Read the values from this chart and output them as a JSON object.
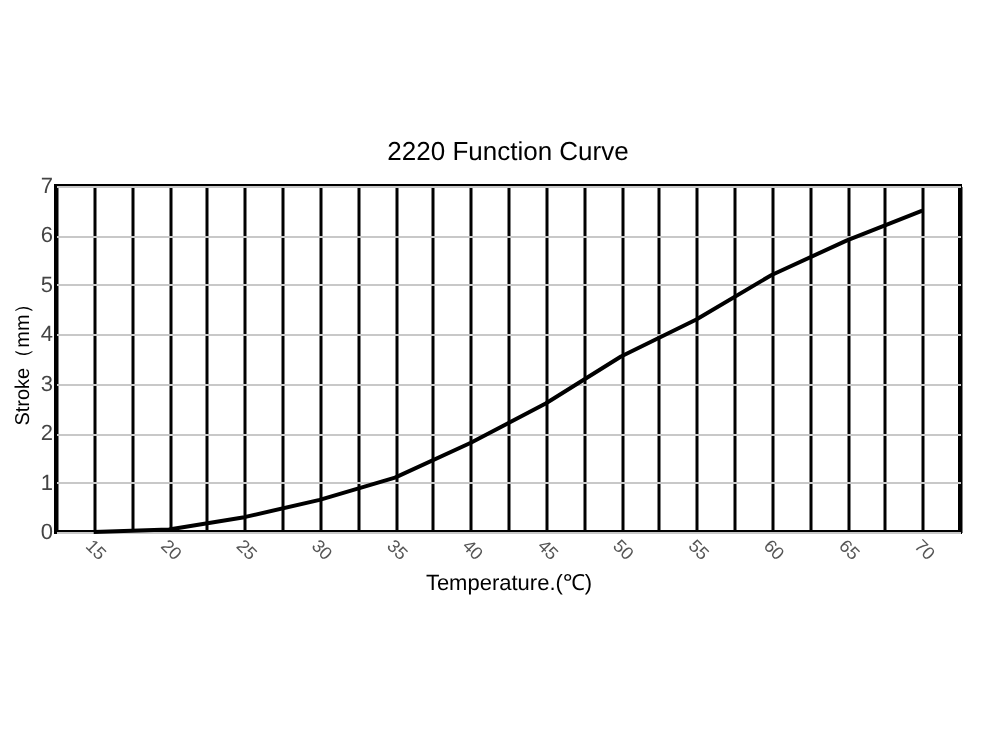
{
  "chart_data": {
    "type": "line",
    "title": "2220 Function Curve",
    "xlabel": "Temperature.(℃)",
    "ylabel": "Stroke（mm）",
    "x": [
      15,
      20,
      25,
      30,
      35,
      40,
      45,
      50,
      55,
      60,
      65,
      70
    ],
    "series": [
      {
        "color": "#000000",
        "values": [
          0,
          0.05,
          0.3,
          0.65,
          1.1,
          1.8,
          2.6,
          3.55,
          4.3,
          5.2,
          5.9,
          6.5
        ]
      }
    ],
    "xlim": [
      12.5,
      72.5
    ],
    "xticks": [
      {
        "value": 12.5,
        "label": null
      },
      15,
      {
        "value": 17.5,
        "label": null
      },
      20,
      {
        "value": 22.5,
        "label": null
      },
      25,
      {
        "value": 27.5,
        "label": null
      },
      30,
      {
        "value": 32.5,
        "label": null
      },
      35,
      {
        "value": 37.5,
        "label": null
      },
      40,
      {
        "value": 42.5,
        "label": null
      },
      45,
      {
        "value": 47.5,
        "label": null
      },
      50,
      {
        "value": 52.5,
        "label": null
      },
      55,
      {
        "value": 57.5,
        "label": null
      },
      60,
      {
        "value": 62.5,
        "label": null
      },
      65,
      {
        "value": 67.5,
        "label": null
      },
      70,
      {
        "value": 72.5,
        "label": null
      }
    ],
    "ylim": [
      0,
      7
    ],
    "yticks": [
      0,
      1,
      2,
      3,
      4,
      5,
      6,
      7
    ],
    "grid": true,
    "marker": "none",
    "line_style": "solid"
  }
}
